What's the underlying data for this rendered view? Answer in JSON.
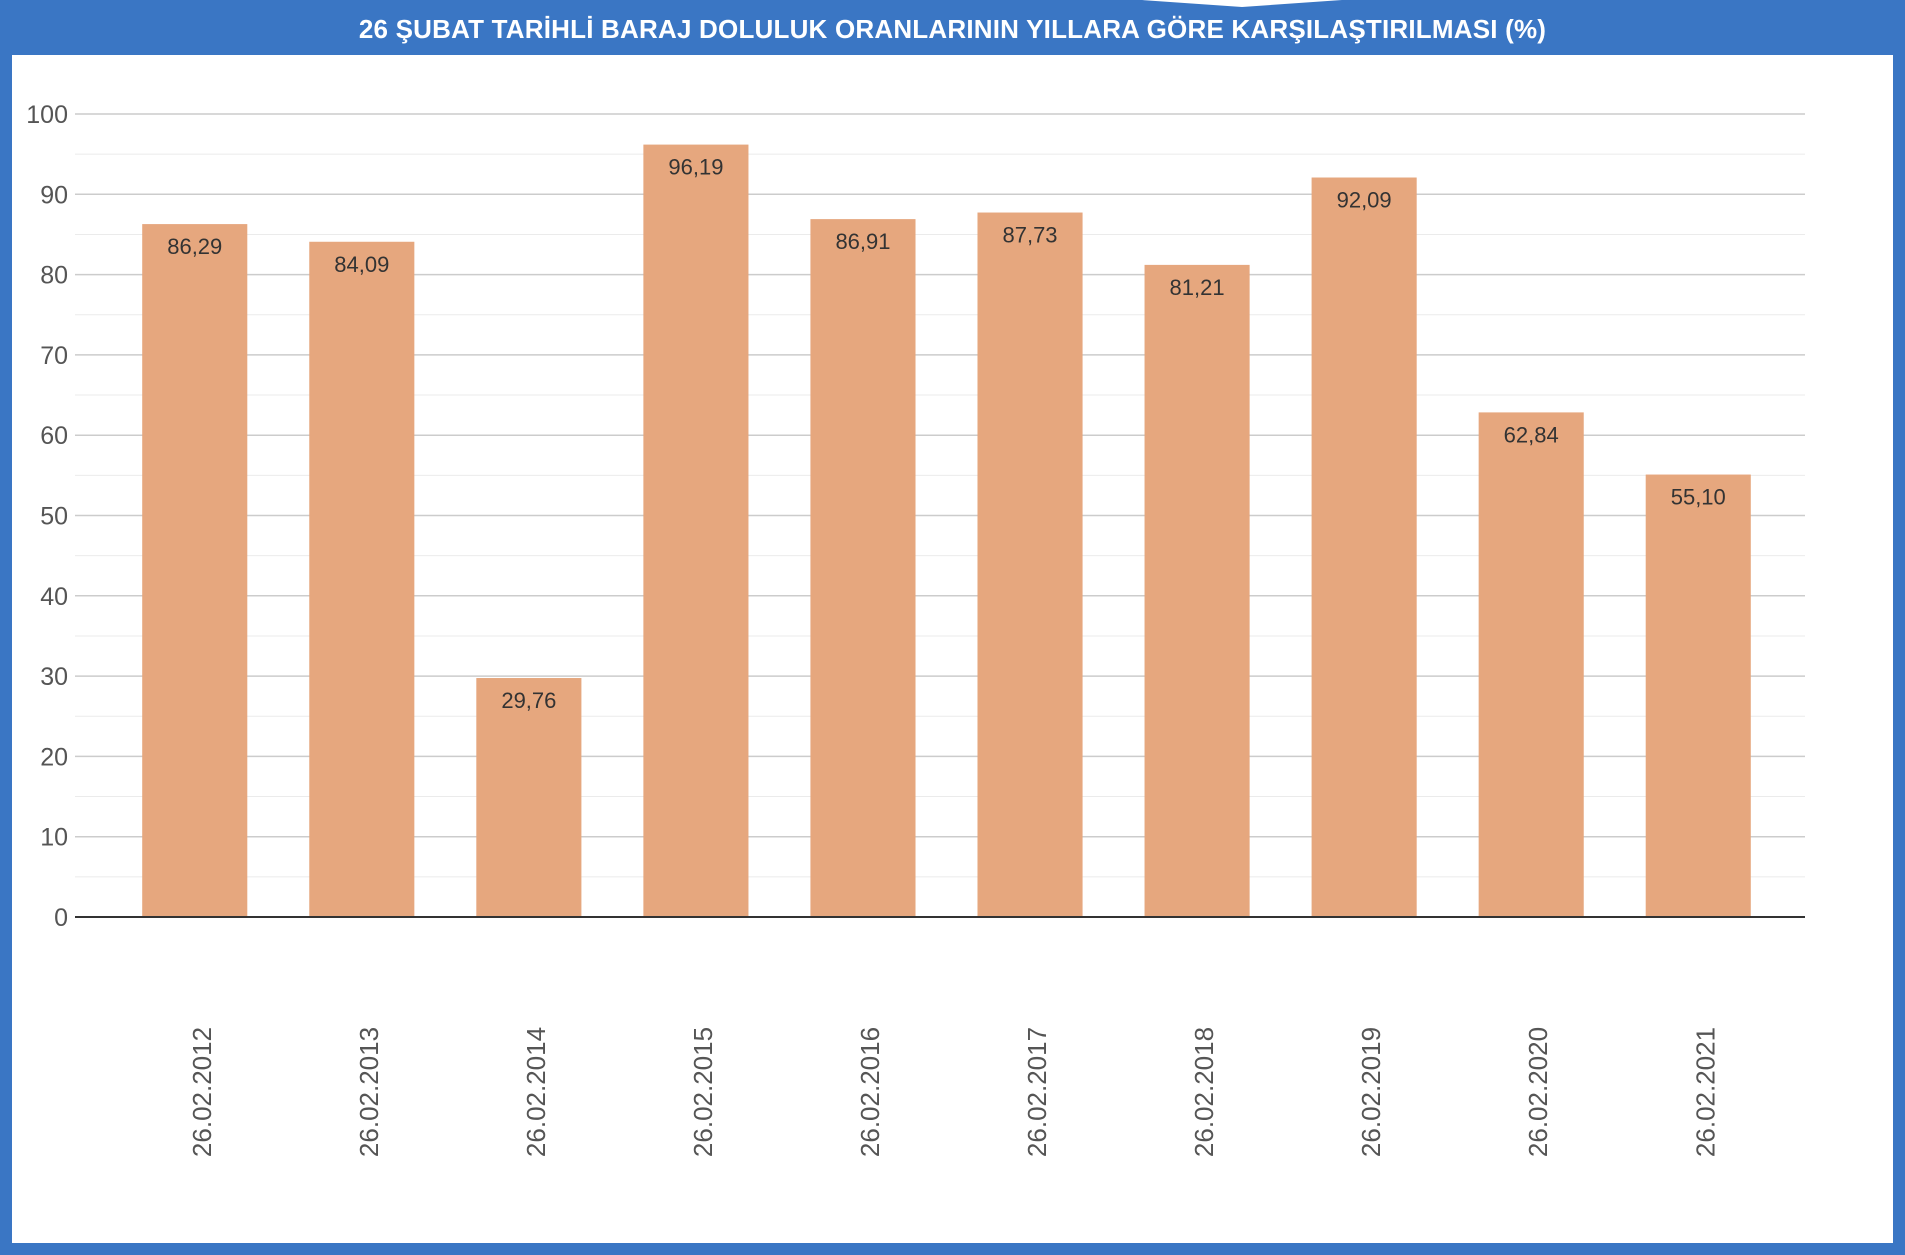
{
  "chart_data": {
    "type": "bar",
    "title": "26 ŞUBAT TARİHLİ BARAJ DOLULUK ORANLARININ YILLARA GÖRE KARŞILAŞTIRILMASI (%)",
    "categories": [
      "26.02.2012",
      "26.02.2013",
      "26.02.2014",
      "26.02.2015",
      "26.02.2016",
      "26.02.2017",
      "26.02.2018",
      "26.02.2019",
      "26.02.2020",
      "26.02.2021"
    ],
    "values": [
      86.29,
      84.09,
      29.76,
      96.19,
      86.91,
      87.73,
      81.21,
      92.09,
      62.84,
      55.1
    ],
    "data_labels": [
      "86,29",
      "84,09",
      "29,76",
      "96,19",
      "86,91",
      "87,73",
      "81,21",
      "92,09",
      "62,84",
      "55,10"
    ],
    "yticks": [
      "0",
      "10",
      "20",
      "30",
      "40",
      "50",
      "60",
      "70",
      "80",
      "90",
      "100"
    ],
    "ylim": [
      0,
      100
    ],
    "xlabel": "",
    "ylabel": "",
    "grid": true,
    "legend": "none",
    "colors": {
      "bar": "#e6a77e",
      "frame": "#3a76c4",
      "major_grid": "#cccccc",
      "minor_grid": "#ebebeb",
      "axis": "#333333"
    }
  }
}
